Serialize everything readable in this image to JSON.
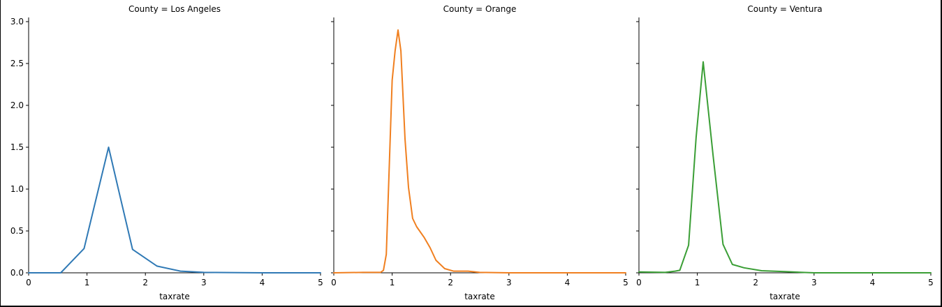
{
  "chart_data": {
    "type": "line",
    "xlabel": "taxrate",
    "ylabel": "",
    "xlim": [
      0,
      5
    ],
    "ylim": [
      0,
      3.05
    ],
    "x_ticks": [
      "0",
      "1",
      "2",
      "3",
      "4",
      "5"
    ],
    "y_ticks": [
      "0.0",
      "0.5",
      "1.0",
      "1.5",
      "2.0",
      "2.5",
      "3.0"
    ],
    "grid": false,
    "facets": [
      {
        "title": "County = Los Angeles",
        "color": "#2f79b5",
        "points": [
          [
            0,
            0.0
          ],
          [
            0.55,
            0.0
          ],
          [
            0.95,
            0.29
          ],
          [
            1.37,
            1.5
          ],
          [
            1.55,
            0.96
          ],
          [
            1.78,
            0.28
          ],
          [
            2.2,
            0.08
          ],
          [
            2.6,
            0.02
          ],
          [
            3.0,
            0.005
          ],
          [
            4.0,
            0.0
          ],
          [
            5.0,
            0.0
          ]
        ]
      },
      {
        "title": "County = Orange",
        "color": "#f07f1f",
        "points": [
          [
            0,
            0.0
          ],
          [
            0.5,
            0.005
          ],
          [
            0.8,
            0.005
          ],
          [
            0.85,
            0.03
          ],
          [
            0.9,
            0.22
          ],
          [
            1.0,
            2.3
          ],
          [
            1.05,
            2.65
          ],
          [
            1.1,
            2.9
          ],
          [
            1.15,
            2.65
          ],
          [
            1.22,
            1.6
          ],
          [
            1.28,
            1.02
          ],
          [
            1.35,
            0.65
          ],
          [
            1.42,
            0.55
          ],
          [
            1.55,
            0.42
          ],
          [
            1.65,
            0.3
          ],
          [
            1.75,
            0.15
          ],
          [
            1.9,
            0.05
          ],
          [
            2.05,
            0.02
          ],
          [
            2.3,
            0.02
          ],
          [
            2.5,
            0.005
          ],
          [
            3.0,
            0.0
          ],
          [
            5.0,
            0.0
          ]
        ]
      },
      {
        "title": "County = Ventura",
        "color": "#3a9e35",
        "points": [
          [
            0,
            0.01
          ],
          [
            0.45,
            0.005
          ],
          [
            0.62,
            0.02
          ],
          [
            0.7,
            0.03
          ],
          [
            0.85,
            0.33
          ],
          [
            0.98,
            1.62
          ],
          [
            1.1,
            2.52
          ],
          [
            1.27,
            1.4
          ],
          [
            1.44,
            0.34
          ],
          [
            1.6,
            0.1
          ],
          [
            1.8,
            0.06
          ],
          [
            2.1,
            0.025
          ],
          [
            2.5,
            0.015
          ],
          [
            2.8,
            0.005
          ],
          [
            3.0,
            0.0
          ],
          [
            5.0,
            0.0
          ]
        ]
      }
    ]
  }
}
